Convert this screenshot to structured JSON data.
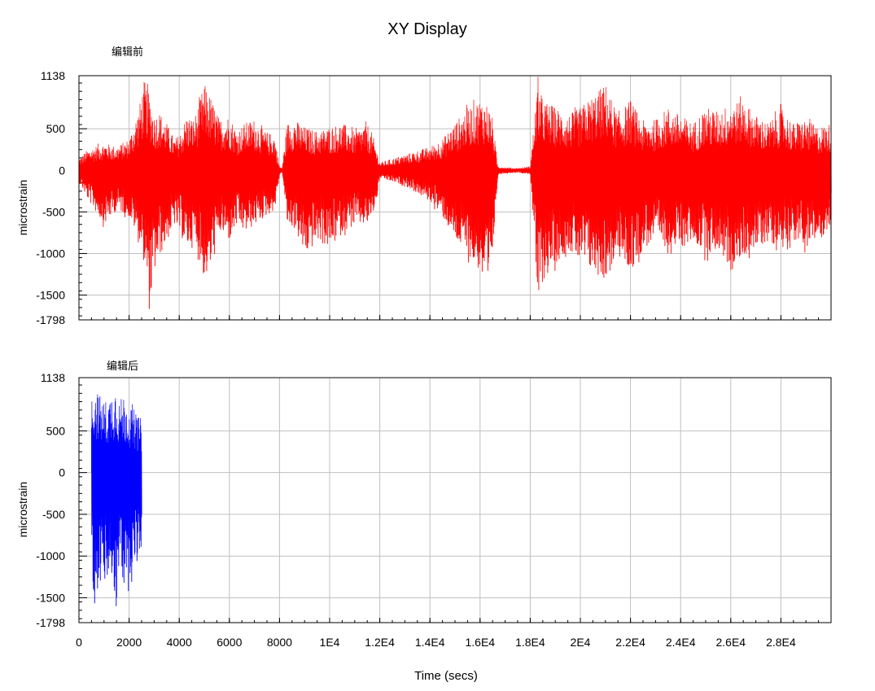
{
  "window_title": "XY Display",
  "x_axis": {
    "label": "Time (secs)",
    "range": [
      0,
      30000
    ],
    "ticks": [
      0,
      2000,
      4000,
      6000,
      8000,
      10000,
      12000,
      14000,
      16000,
      18000,
      20000,
      22000,
      24000,
      26000,
      28000
    ],
    "tick_labels": [
      "0",
      "2000",
      "4000",
      "6000",
      "8000",
      "1E4",
      "1.2E4",
      "1.4E4",
      "1.6E4",
      "1.8E4",
      "2E4",
      "2.2E4",
      "2.4E4",
      "2.6E4",
      "2.8E4"
    ]
  },
  "colors": {
    "top_series": "#ff0000",
    "bottom_series": "#0000ff",
    "grid": "#c0c0c0",
    "frame": "#000000"
  },
  "chart_data": [
    {
      "type": "line",
      "title": "编辑前",
      "ylabel": "microstrain",
      "xlabel": "",
      "ylim": [
        -1798,
        1138
      ],
      "xlim": [
        0,
        30000
      ],
      "y_tick_labels": [
        "1138",
        "500",
        "0",
        "-500",
        "-1000",
        "-1500",
        "-1798"
      ],
      "y_ticks": [
        1138,
        500,
        0,
        -500,
        -1000,
        -1500,
        -1798
      ],
      "grid": true,
      "series": [
        {
          "color": "#ff0000",
          "envelope": {
            "x": [
              0,
              300,
              600,
              1000,
              1500,
              2000,
              2400,
              2600,
              2800,
              3000,
              3200,
              3500,
              3800,
              4000,
              4300,
              4600,
              5000,
              5300,
              5600,
              6000,
              6300,
              6600,
              7000,
              7400,
              7800,
              8000,
              8100,
              8300,
              8600,
              9000,
              9500,
              10000,
              10500,
              11000,
              11500,
              11800,
              12000,
              12500,
              13000,
              13500,
              14000,
              14500,
              15000,
              15500,
              16000,
              16300,
              16500,
              16700,
              16800,
              17000,
              17500,
              18000,
              18300,
              18500,
              19000,
              19500,
              20000,
              20500,
              21000,
              21500,
              22000,
              22500,
              23000,
              23500,
              24000,
              24500,
              25000,
              25500,
              26000,
              26500,
              27000,
              27500,
              28000,
              28500,
              29000,
              29500,
              30000
            ],
            "max": [
              150,
              250,
              300,
              350,
              300,
              400,
              800,
              1138,
              1000,
              700,
              750,
              600,
              400,
              450,
              700,
              650,
              1100,
              900,
              650,
              700,
              500,
              600,
              650,
              500,
              450,
              50,
              30,
              600,
              650,
              550,
              500,
              550,
              600,
              500,
              600,
              350,
              100,
              150,
              200,
              250,
              300,
              400,
              600,
              800,
              900,
              850,
              650,
              60,
              50,
              40,
              30,
              50,
              1138,
              900,
              800,
              700,
              800,
              950,
              1100,
              700,
              900,
              600,
              650,
              800,
              700,
              600,
              800,
              750,
              850,
              900,
              700,
              600,
              800,
              600,
              650,
              550,
              600
            ],
            "min": [
              -150,
              -350,
              -500,
              -700,
              -500,
              -600,
              -900,
              -1200,
              -1798,
              -1300,
              -1100,
              -900,
              -700,
              -800,
              -1000,
              -900,
              -1400,
              -1200,
              -800,
              -900,
              -700,
              -800,
              -700,
              -600,
              -500,
              -50,
              -30,
              -700,
              -750,
              -1100,
              -900,
              -1000,
              -800,
              -700,
              -700,
              -500,
              -100,
              -150,
              -200,
              -300,
              -400,
              -600,
              -900,
              -1100,
              -1300,
              -1700,
              -1000,
              -60,
              -50,
              -40,
              -30,
              -50,
              -1798,
              -1400,
              -1200,
              -1000,
              -1200,
              -1300,
              -1400,
              -1100,
              -1300,
              -1000,
              -900,
              -1000,
              -1000,
              -900,
              -1100,
              -1000,
              -1300,
              -1100,
              -1000,
              -900,
              -1000,
              -900,
              -1000,
              -900,
              -700
            ]
          }
        }
      ]
    },
    {
      "type": "line",
      "title": "编辑后",
      "ylabel": "microstrain",
      "xlabel": "Time (secs)",
      "ylim": [
        -1798,
        1138
      ],
      "xlim": [
        0,
        30000
      ],
      "y_tick_labels": [
        "1138",
        "500",
        "0",
        "-500",
        "-1000",
        "-1500",
        "-1798"
      ],
      "y_ticks": [
        1138,
        500,
        0,
        -500,
        -1000,
        -1500,
        -1798
      ],
      "grid": true,
      "series": [
        {
          "color": "#0000ff",
          "envelope": {
            "x": [
              500,
              600,
              800,
              1000,
              1200,
              1400,
              1500,
              1600,
              1800,
              2000,
              2200,
              2400,
              2500
            ],
            "max": [
              900,
              1138,
              1000,
              900,
              950,
              1100,
              1138,
              900,
              1000,
              850,
              800,
              700,
              600
            ],
            "min": [
              -1200,
              -1700,
              -1400,
              -1500,
              -1300,
              -1600,
              -1798,
              -1200,
              -1500,
              -1400,
              -1200,
              -1100,
              -1000
            ]
          }
        }
      ]
    }
  ]
}
